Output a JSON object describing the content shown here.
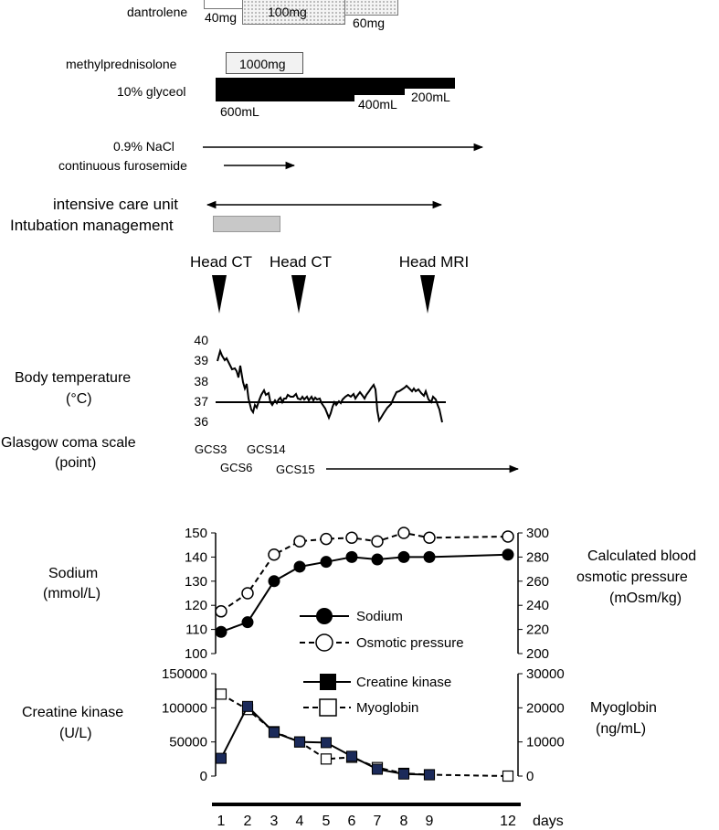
{
  "drugs": {
    "dantrolene": {
      "label": "dantrolene",
      "doses": [
        "40mg",
        "100mg",
        "60mg"
      ]
    },
    "methylprednisolone": {
      "label": "methylprednisolone",
      "dose": "1000mg"
    },
    "glyceol": {
      "label": "10% glyceol",
      "doses": [
        "600mL",
        "400mL",
        "200mL"
      ]
    },
    "nacl": {
      "label": "0.9% NaCl"
    },
    "furosemide": {
      "label": "continuous furosemide"
    }
  },
  "care": {
    "icu": "intensive care unit",
    "intubation": "Intubation management",
    "intubation_color": "#c8c8c8"
  },
  "imaging": [
    {
      "label": "Head CT",
      "day": 1
    },
    {
      "label": "Head CT",
      "day": 4
    },
    {
      "label": "Head MRI",
      "day": 9
    }
  ],
  "temperature": {
    "label": "Body temperature",
    "unit": "(°C)",
    "ticks": [
      "40",
      "39",
      "38",
      "37",
      "36"
    ],
    "baseline": 37
  },
  "gcs": {
    "label": "Glasgow coma scale",
    "unit": "(point)",
    "values": [
      "GCS3",
      "GCS6",
      "GCS14",
      "GCS15"
    ]
  },
  "chart_data": [
    {
      "type": "line",
      "title": "",
      "ylabel_left": "Sodium (mmol/L)",
      "ylabel_right": "Calculated blood osmotic pressure (mOsm/kg)",
      "ylim_left": [
        100,
        150
      ],
      "ylim_right": [
        200,
        300
      ],
      "yticks_left": [
        "150",
        "140",
        "130",
        "120",
        "110",
        "100"
      ],
      "yticks_right": [
        "300",
        "280",
        "260",
        "240",
        "220",
        "200"
      ],
      "series": [
        {
          "name": "Sodium",
          "axis": "left",
          "x": [
            1,
            2,
            3,
            4,
            5,
            6,
            7,
            8,
            9,
            12
          ],
          "values": [
            109,
            113,
            130,
            136,
            138,
            140,
            139,
            140,
            140,
            141
          ]
        },
        {
          "name": "Osmotic pressure",
          "axis": "right",
          "x": [
            1,
            2,
            3,
            4,
            5,
            6,
            7,
            8,
            9,
            12
          ],
          "values": [
            235,
            250,
            282,
            293,
            295,
            296,
            293,
            300,
            296,
            297
          ]
        }
      ],
      "legend": "center-right"
    },
    {
      "type": "line",
      "title": "",
      "ylabel_left": "Creatine kinase (U/L)",
      "ylabel_right": "Myoglobin (ng/mL)",
      "ylim_left": [
        0,
        150000
      ],
      "ylim_right": [
        0,
        30000
      ],
      "yticks_left": [
        "150000",
        "100000",
        "50000",
        "0"
      ],
      "yticks_right": [
        "30000",
        "20000",
        "10000",
        "0"
      ],
      "series": [
        {
          "name": "Creatine kinase",
          "axis": "left",
          "x": [
            1,
            2,
            3,
            4,
            5,
            6,
            7,
            8,
            9
          ],
          "values": [
            26000,
            102000,
            64000,
            50000,
            49000,
            29000,
            10000,
            3000,
            2000
          ]
        },
        {
          "name": "Myoglobin",
          "axis": "right",
          "x": [
            1,
            2,
            3,
            4,
            5,
            6,
            7,
            8,
            9,
            12
          ],
          "values": [
            24000,
            19500,
            13000,
            10000,
            5000,
            5500,
            2500,
            800,
            400,
            0
          ]
        }
      ],
      "legend": "top-right"
    }
  ],
  "xaxis": {
    "ticks": [
      "1",
      "2",
      "3",
      "4",
      "5",
      "6",
      "7",
      "8",
      "9",
      "12"
    ],
    "unit": "days"
  }
}
